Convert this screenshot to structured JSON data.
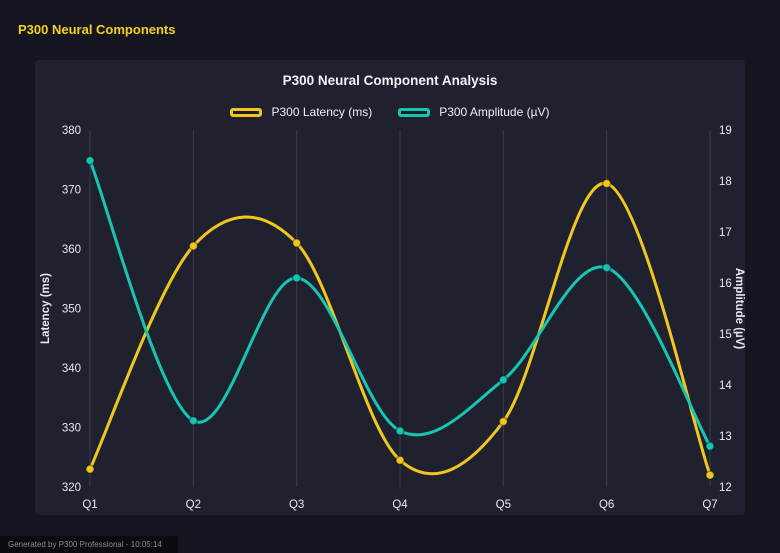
{
  "page": {
    "title": "P300 Neural Components",
    "footer": "Generated by P300 Professional - 10:05:14"
  },
  "colors": {
    "background": "#15151f",
    "panel": "#20212f",
    "grid": "#3b3c4e",
    "text": "#e8e8ee",
    "header_accent": "#f5d11c",
    "latency_series": "#f2c71d",
    "amplitude_series": "#18c5b4"
  },
  "chart_data": {
    "type": "line",
    "title": "P300 Neural Component Analysis",
    "categories": [
      "Q1",
      "Q2",
      "Q3",
      "Q4",
      "Q5",
      "Q6",
      "Q7"
    ],
    "series": [
      {
        "name": "P300 Latency (ms)",
        "axis": "left",
        "color": "#f2c71d",
        "values": [
          323,
          360.5,
          361,
          324.5,
          331,
          371,
          322
        ]
      },
      {
        "name": "P300 Amplitude (µV)",
        "axis": "right",
        "color": "#18c5b4",
        "values": [
          18.4,
          13.3,
          16.1,
          13.1,
          14.1,
          16.3,
          12.8
        ]
      }
    ],
    "left_axis": {
      "label": "Latency (ms)",
      "min": 320,
      "max": 380,
      "step": 10
    },
    "right_axis": {
      "label": "Amplitude (µV)",
      "min": 12,
      "max": 19,
      "step": 1
    },
    "legend_position": "top",
    "grid": "vertical",
    "smoothing": "spline"
  }
}
